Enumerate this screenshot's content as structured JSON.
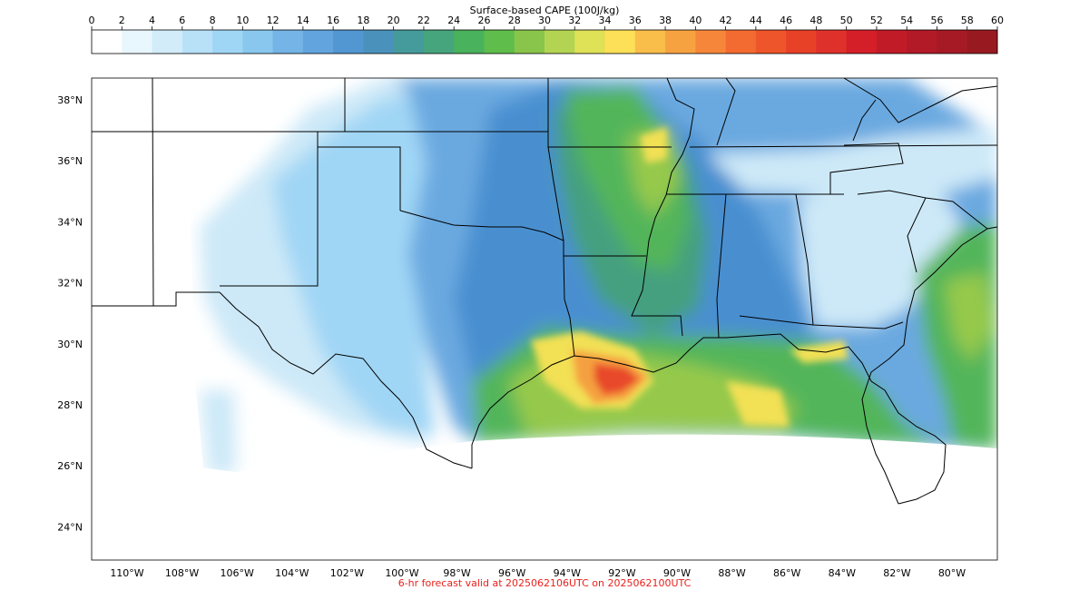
{
  "colorbar": {
    "title": "Surface-based CAPE (100J/kg)",
    "tick_labels": [
      "0",
      "2",
      "4",
      "6",
      "8",
      "10",
      "12",
      "14",
      "16",
      "18",
      "20",
      "22",
      "24",
      "26",
      "28",
      "30",
      "32",
      "34",
      "36",
      "38",
      "40",
      "42",
      "44",
      "46",
      "48",
      "50",
      "52",
      "54",
      "56",
      "58",
      "60"
    ],
    "colors": [
      "#ffffff",
      "#e8f6fd",
      "#d2ecfa",
      "#b8e1f7",
      "#a0d6f5",
      "#89c7ee",
      "#74b4e6",
      "#62a4de",
      "#5296d2",
      "#4a92bc",
      "#459b9c",
      "#46a57d",
      "#49b25c",
      "#5fbd4b",
      "#89c54a",
      "#b3d453",
      "#dfe157",
      "#fde057",
      "#f9bd4a",
      "#f7a241",
      "#f6873a",
      "#f36b30",
      "#ee552a",
      "#e74128",
      "#df312c",
      "#d41f28",
      "#c11b28",
      "#b21a27",
      "#a51a25",
      "#981a20"
    ]
  },
  "map": {
    "lat_labels": [
      {
        "label": "38°N",
        "lat": 38
      },
      {
        "label": "36°N",
        "lat": 36
      },
      {
        "label": "34°N",
        "lat": 34
      },
      {
        "label": "32°N",
        "lat": 32
      },
      {
        "label": "30°N",
        "lat": 30
      },
      {
        "label": "28°N",
        "lat": 28
      },
      {
        "label": "26°N",
        "lat": 26
      },
      {
        "label": "24°N",
        "lat": 24
      }
    ],
    "lon_labels": [
      {
        "label": "110°W",
        "lon": -110
      },
      {
        "label": "108°W",
        "lon": -108
      },
      {
        "label": "106°W",
        "lon": -106
      },
      {
        "label": "104°W",
        "lon": -104
      },
      {
        "label": "102°W",
        "lon": -102
      },
      {
        "label": "100°W",
        "lon": -100
      },
      {
        "label": "98°W",
        "lon": -98
      },
      {
        "label": "96°W",
        "lon": -96
      },
      {
        "label": "94°W",
        "lon": -94
      },
      {
        "label": "92°W",
        "lon": -92
      },
      {
        "label": "90°W",
        "lon": -90
      },
      {
        "label": "88°W",
        "lon": -88
      },
      {
        "label": "86°W",
        "lon": -86
      },
      {
        "label": "84°W",
        "lon": -84
      },
      {
        "label": "82°W",
        "lon": -82
      },
      {
        "label": "80°W",
        "lon": -80
      }
    ],
    "field_colors": {
      "light_blue": "#cde9f8",
      "sky_blue": "#a0d6f5",
      "mid_blue": "#6aa9e0",
      "deep_blue": "#4a8fd0",
      "teal": "#45a07f",
      "green": "#52b55a",
      "lime": "#96c94b",
      "yellow": "#f2e055",
      "orange": "#f5a040",
      "red": "#e84a2a"
    }
  },
  "caption": "6-hr forecast valid at 2025062106UTC on 2025062100UTC"
}
